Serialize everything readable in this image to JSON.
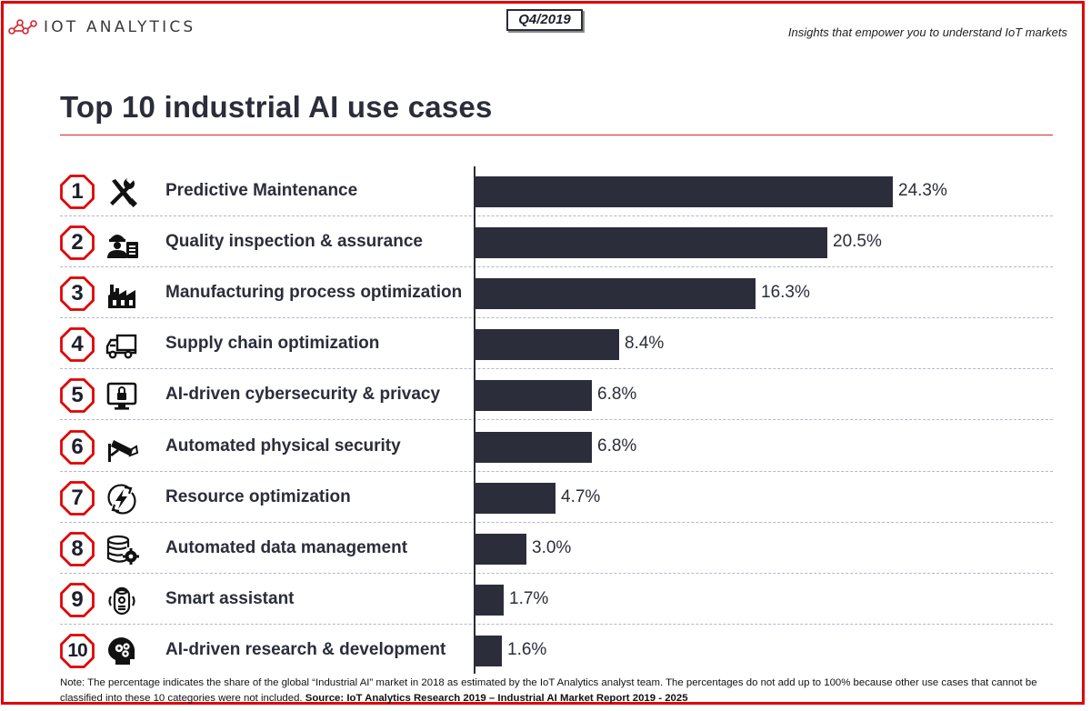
{
  "header": {
    "logo_text": "IOT ANALYTICS",
    "quarter": "Q4/2019",
    "tagline": "Insights that empower you to understand IoT markets"
  },
  "title": "Top 10 industrial AI use cases",
  "chart_data": {
    "type": "bar",
    "orientation": "horizontal",
    "categories": [
      "Predictive Maintenance",
      "Quality inspection & assurance",
      "Manufacturing process optimization",
      "Supply chain optimization",
      "AI-driven cybersecurity & privacy",
      "Automated physical security",
      "Resource optimization",
      "Automated data management",
      "Smart assistant",
      "AI-driven research & development"
    ],
    "ranks": [
      "1",
      "2",
      "3",
      "4",
      "5",
      "6",
      "7",
      "8",
      "9",
      "10"
    ],
    "values": [
      24.3,
      20.5,
      16.3,
      8.4,
      6.8,
      6.8,
      4.7,
      3.0,
      1.7,
      1.6
    ],
    "value_labels": [
      "24.3%",
      "20.5%",
      "16.3%",
      "8.4%",
      "6.8%",
      "6.8%",
      "4.7%",
      "3.0%",
      "1.7%",
      "1.6%"
    ],
    "icons": [
      "wrench-screwdriver-icon",
      "worker-clipboard-icon",
      "factory-icon",
      "truck-icon",
      "monitor-lock-icon",
      "security-camera-icon",
      "energy-bolt-icon",
      "database-gear-icon",
      "smart-speaker-icon",
      "brain-head-icon"
    ],
    "bar_color": "#2b2d3a",
    "rank_border_color": "#e00000",
    "grid": false
  },
  "footer": {
    "note": "Note: The percentage indicates the share of the global “Industrial AI” market in 2018 as estimated by the IoT Analytics analyst team. The percentages do not add up to 100% because other use cases that cannot be classified into these 10 categories were not included.",
    "source": "Source: IoT Analytics Research 2019 – Industrial AI Market Report 2019 - 2025"
  }
}
